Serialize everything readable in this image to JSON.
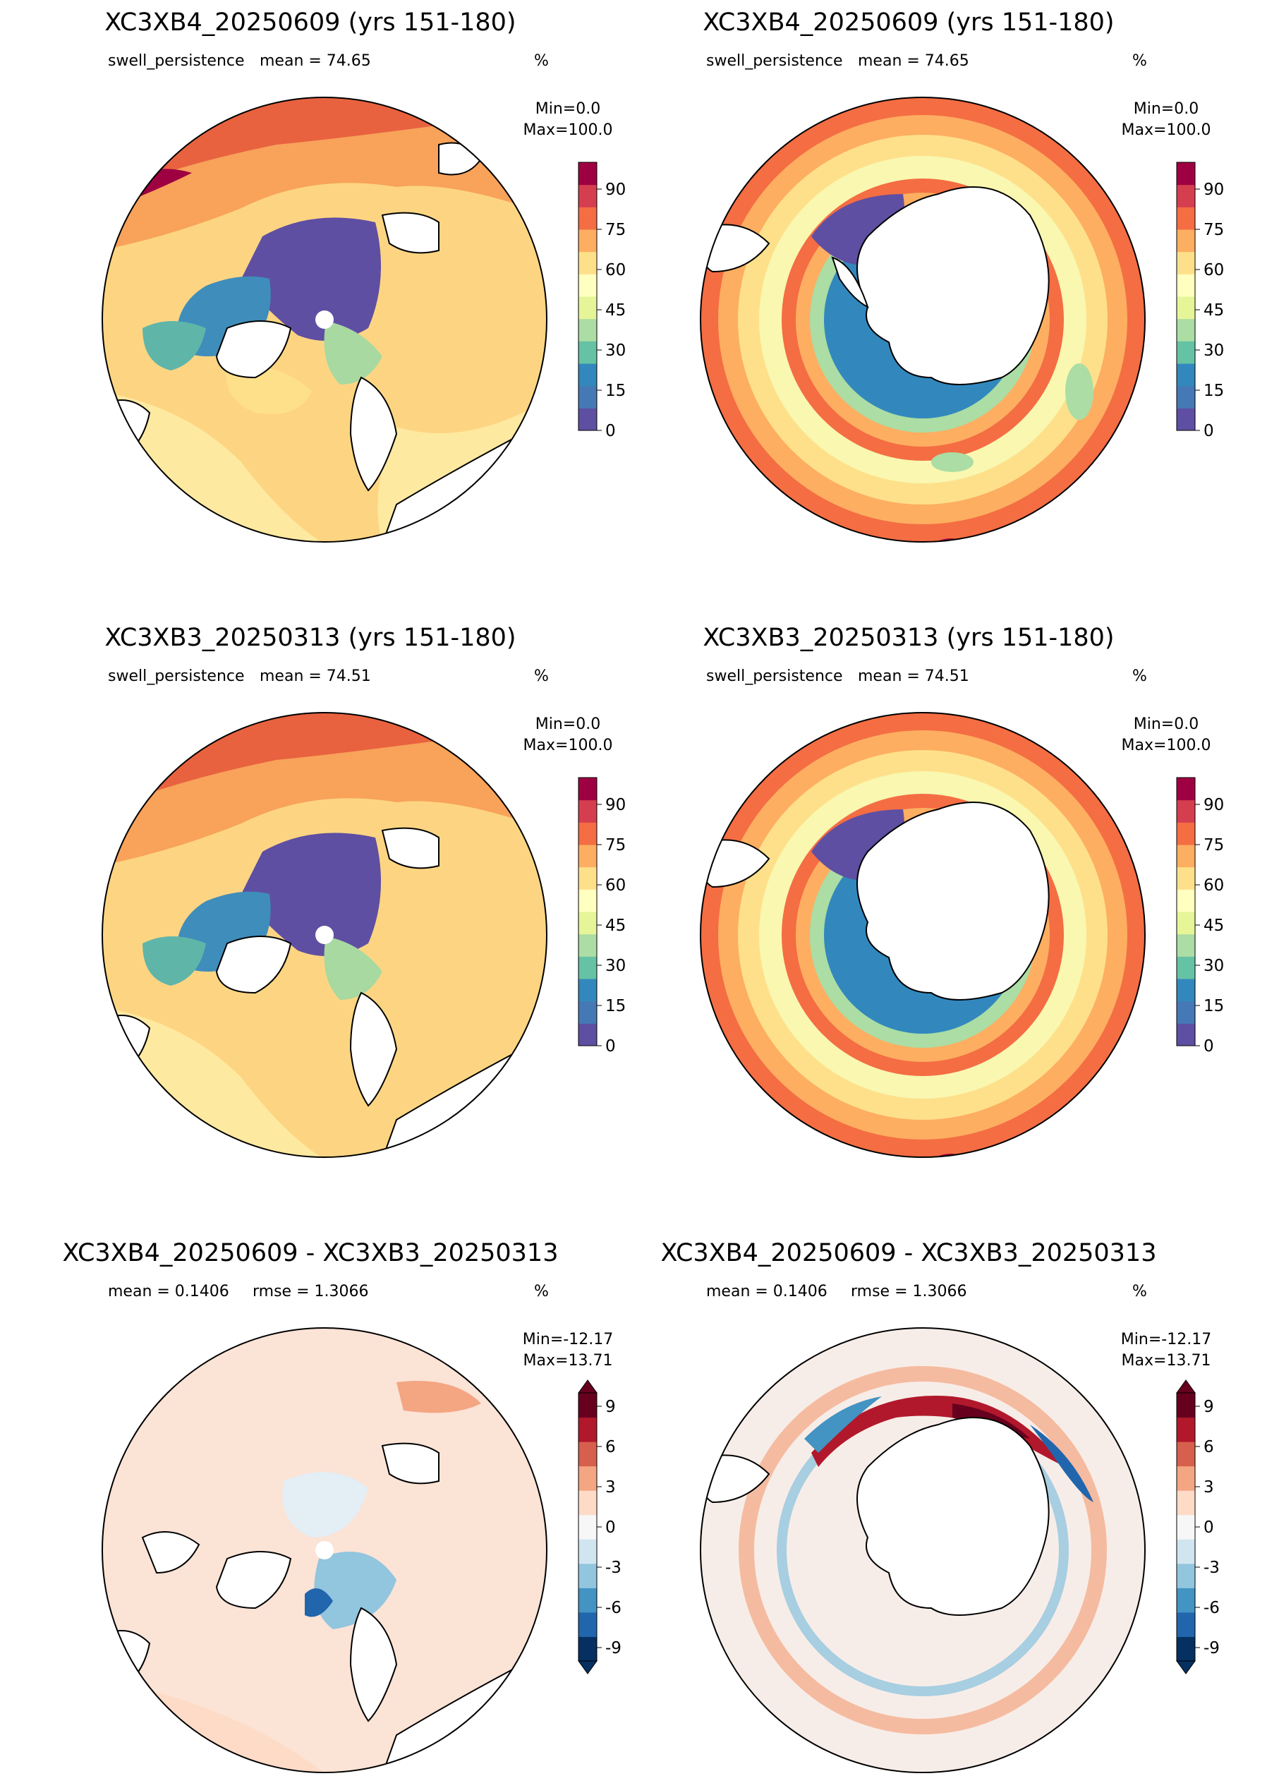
{
  "panels": [
    {
      "title": "XC3XB4_20250609 (yrs 151-180)",
      "sub_left": "swell_persistence",
      "sub_mid": "mean = 74.65",
      "unit": "%",
      "min": "Min=0.0",
      "max": "Max=100.0",
      "hemisphere": "north",
      "scale": "full"
    },
    {
      "title": "XC3XB4_20250609 (yrs 151-180)",
      "sub_left": "swell_persistence",
      "sub_mid": "mean = 74.65",
      "unit": "%",
      "min": "Min=0.0",
      "max": "Max=100.0",
      "hemisphere": "south",
      "scale": "full"
    },
    {
      "title": "XC3XB3_20250313 (yrs 151-180)",
      "sub_left": "swell_persistence",
      "sub_mid": "mean = 74.51",
      "unit": "%",
      "min": "Min=0.0",
      "max": "Max=100.0",
      "hemisphere": "north",
      "scale": "full"
    },
    {
      "title": "XC3XB3_20250313 (yrs 151-180)",
      "sub_left": "swell_persistence",
      "sub_mid": "mean = 74.51",
      "unit": "%",
      "min": "Min=0.0",
      "max": "Max=100.0",
      "hemisphere": "south",
      "scale": "full"
    },
    {
      "title": "XC3XB4_20250609 - XC3XB3_20250313",
      "sub_left": "mean = 0.1406",
      "sub_mid": "rmse = 1.3066",
      "unit": "%",
      "min": "Min=-12.17",
      "max": "Max=13.71",
      "hemisphere": "north",
      "scale": "diff"
    },
    {
      "title": "XC3XB4_20250609 - XC3XB3_20250313",
      "sub_left": "mean = 0.1406",
      "sub_mid": "rmse = 1.3066",
      "unit": "%",
      "min": "Min=-12.17",
      "max": "Max=13.71",
      "hemisphere": "south",
      "scale": "diff"
    }
  ],
  "colorbars": {
    "full": {
      "ticks": [
        "0",
        "15",
        "30",
        "45",
        "60",
        "75",
        "90"
      ],
      "range": [
        0,
        100
      ],
      "colors": [
        "#5e4fa2",
        "#4579b5",
        "#3288bd",
        "#66c2a5",
        "#abdda4",
        "#e6f598",
        "#ffffbf",
        "#fee08b",
        "#fdae61",
        "#f46d43",
        "#d53e4f",
        "#9e0142"
      ]
    },
    "diff": {
      "ticks": [
        "-9",
        "-6",
        "-3",
        "0",
        "3",
        "6",
        "9"
      ],
      "range": [
        -10,
        10
      ],
      "colors": [
        "#053061",
        "#2166ac",
        "#4393c3",
        "#92c5de",
        "#d1e5f0",
        "#f7f7f7",
        "#fddbc7",
        "#f4a582",
        "#d6604d",
        "#b2182b",
        "#67001f"
      ]
    }
  }
}
